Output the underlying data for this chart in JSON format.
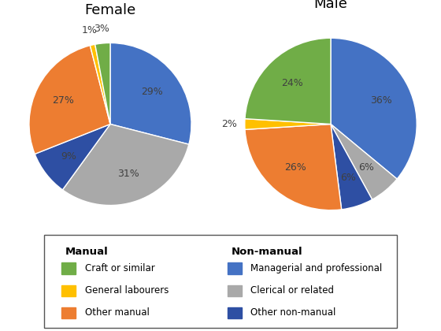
{
  "female_title": "Female",
  "male_title": "Male",
  "female_values": [
    29,
    31,
    9,
    27,
    1,
    3
  ],
  "male_values": [
    36,
    6,
    6,
    26,
    2,
    24
  ],
  "colors": [
    "#4472C4",
    "#A9A9A9",
    "#2E4FA3",
    "#ED7D31",
    "#FFC000",
    "#70AD47"
  ],
  "female_labels": [
    "29%",
    "31%",
    "9%",
    "27%",
    "1%",
    "3%"
  ],
  "male_labels": [
    "36%",
    "6%",
    "6%",
    "26%",
    "2%",
    "24%"
  ],
  "female_label_outside": [
    false,
    false,
    false,
    false,
    true,
    true
  ],
  "male_label_outside": [
    false,
    false,
    false,
    false,
    true,
    false
  ],
  "legend_manual_title": "Manual",
  "legend_nonmanual_title": "Non-manual",
  "legend_items_manual": [
    "Craft or similar",
    "General labourers",
    "Other manual"
  ],
  "legend_items_nonmanual": [
    "Managerial and professional",
    "Clerical or related",
    "Other non-manual"
  ],
  "legend_colors_manual": [
    "#70AD47",
    "#FFC000",
    "#ED7D31"
  ],
  "legend_colors_nonmanual": [
    "#4472C4",
    "#A9A9A9",
    "#2E4FA3"
  ]
}
